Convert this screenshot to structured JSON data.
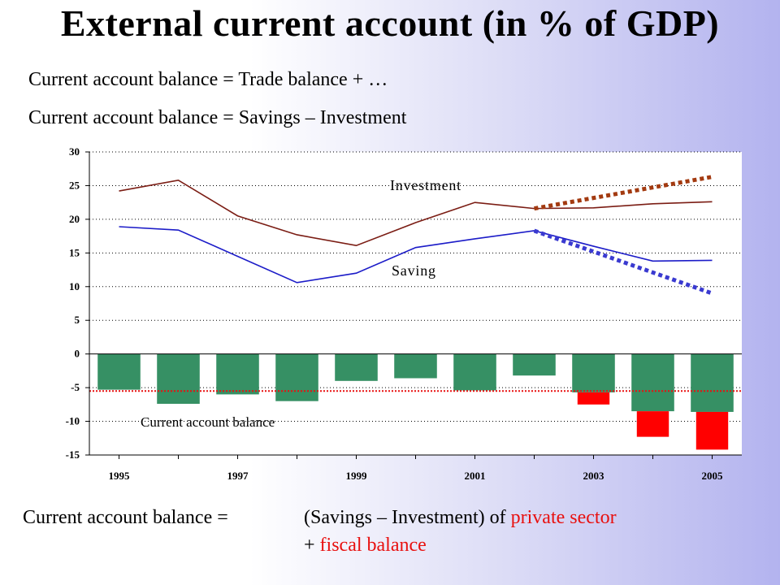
{
  "title": "External current account (in % of GDP)",
  "subtitle_lines": [
    "Current account balance = Trade balance + …",
    "Current account balance = Savings – Investment"
  ],
  "colors": {
    "investment_line": "#7b1d14",
    "saving_line": "#1c1cc8",
    "bars": "#369064",
    "fiscal_bars": "#ff0000",
    "investment_trend": "#a33a10",
    "saving_trend": "#3a3ad0",
    "reference_line": "#e81010",
    "emphasis_text": "#e8100f"
  },
  "chart_data": {
    "type": "bar+line",
    "x": [
      1995,
      1996,
      1997,
      1998,
      1999,
      2000,
      2001,
      2002,
      2003,
      2004,
      2005
    ],
    "x_tick_labels": [
      "1995",
      "1997",
      "1999",
      "2001",
      "2003",
      "2005"
    ],
    "y_ticks": [
      30,
      25,
      20,
      15,
      10,
      5,
      0,
      -5,
      -10,
      -15
    ],
    "ylim": [
      -15,
      30
    ],
    "grid": true,
    "series": [
      {
        "name": "Investment",
        "type": "line",
        "values": [
          24.2,
          25.8,
          20.5,
          17.7,
          16.1,
          19.5,
          22.5,
          21.6,
          21.7,
          22.3,
          22.6
        ]
      },
      {
        "name": "Saving",
        "type": "line",
        "values": [
          18.9,
          18.4,
          14.5,
          10.6,
          12.0,
          15.8,
          17.1,
          18.3,
          16.0,
          13.8,
          13.9
        ]
      },
      {
        "name": "Current account balance",
        "type": "bar",
        "values": [
          -5.3,
          -7.4,
          -6.0,
          -7.0,
          -4.0,
          -3.6,
          -5.4,
          -3.2,
          -5.7,
          -8.5,
          -8.6
        ]
      },
      {
        "type": "bar",
        "values": [
          null,
          null,
          null,
          null,
          null,
          null,
          null,
          null,
          -1.8,
          -3.8,
          -5.6
        ]
      }
    ],
    "trend_lines": [
      {
        "points": [
          [
            2002,
            21.6
          ],
          [
            2005,
            26.3
          ]
        ]
      },
      {
        "points": [
          [
            2002,
            18.3
          ],
          [
            2005,
            9.0
          ]
        ]
      }
    ],
    "reference_line": -5.5
  },
  "equation": {
    "label": "Current account balance =",
    "line1_text": "(Savings – Investment)",
    "line1_of": "of",
    "line1_emph": "private sector",
    "line2_plus": "+",
    "line2_emph": "fiscal balance"
  }
}
